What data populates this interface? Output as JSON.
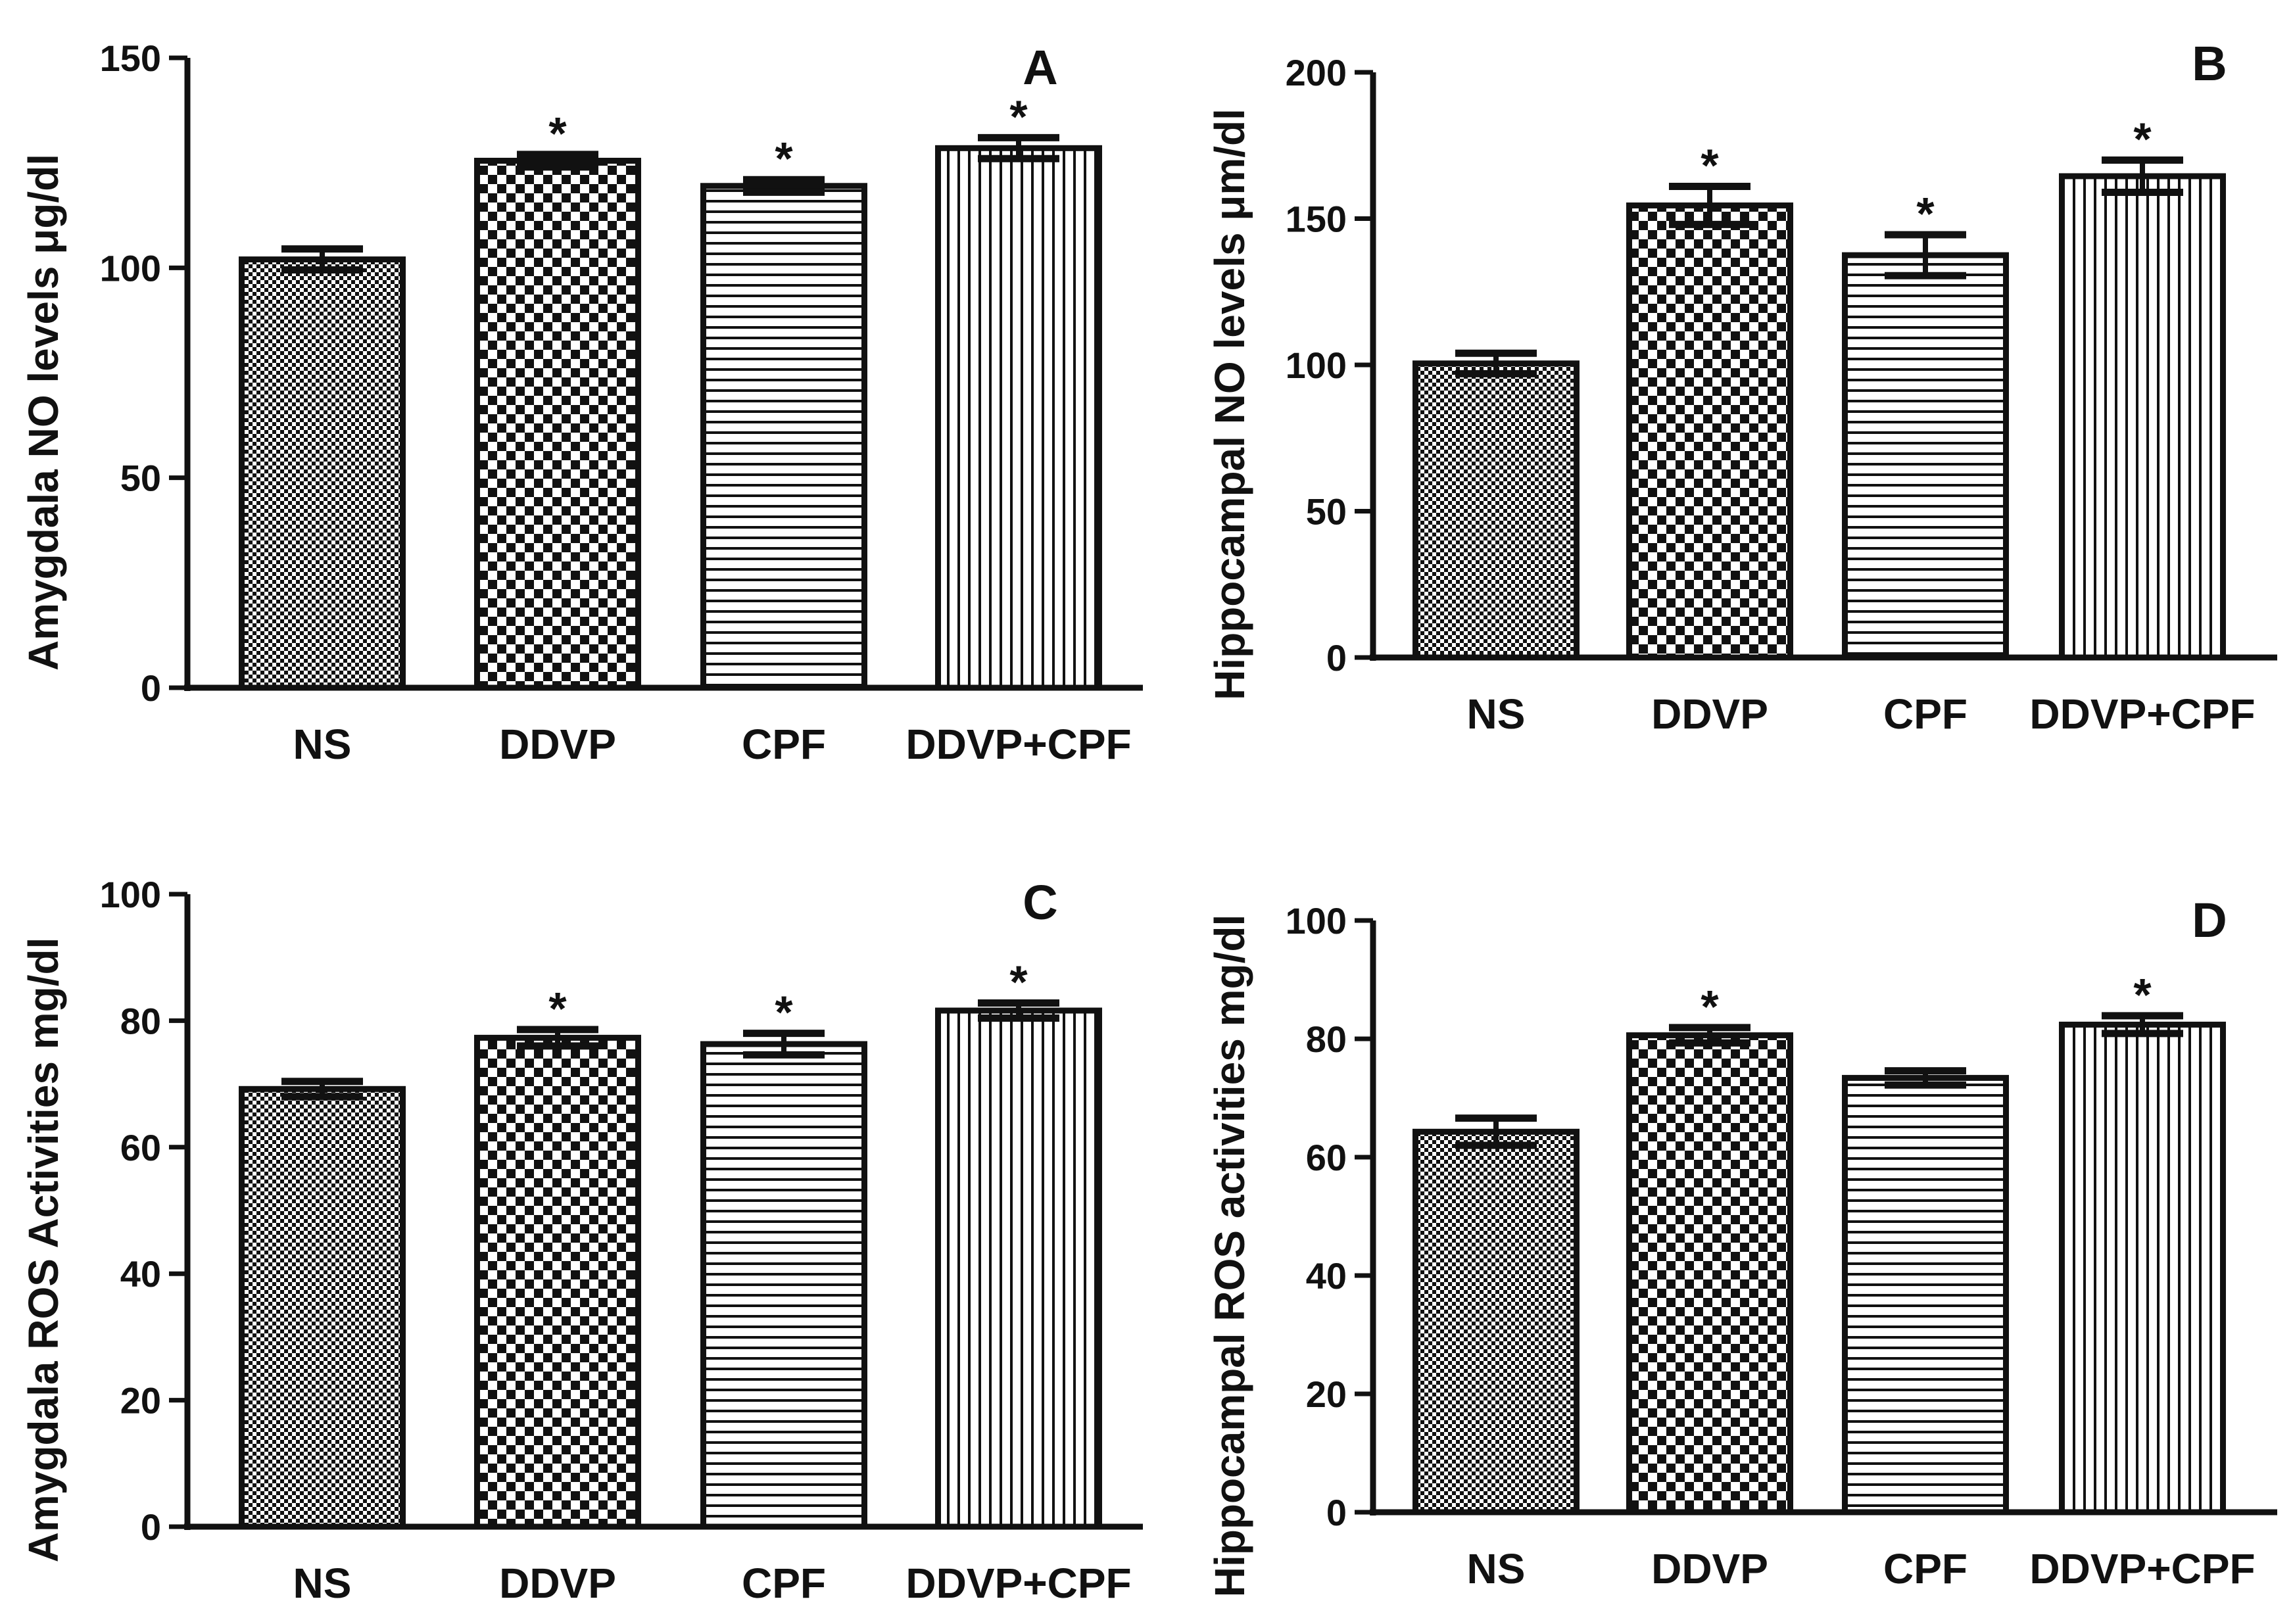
{
  "chart_data": [
    {
      "type": "bar",
      "panel": "A",
      "categories": [
        "NS",
        "DDVP",
        "CPF",
        "DDVP+CPF"
      ],
      "values": [
        102,
        125.5,
        119.5,
        128.5
      ],
      "errors": [
        2.5,
        1.5,
        1.5,
        2.5
      ],
      "significance": [
        "",
        "*",
        "*",
        "*"
      ],
      "ylabel": "Amygdala NO levels  μg/dl",
      "ylim": [
        0,
        150
      ],
      "yticks": [
        0,
        50,
        100,
        150
      ],
      "legend": "none",
      "grid": false
    },
    {
      "type": "bar",
      "panel": "B",
      "categories": [
        "NS",
        "DDVP",
        "CPF",
        "DDVP+CPF"
      ],
      "values": [
        100.5,
        154.5,
        137.5,
        164.5
      ],
      "errors": [
        3.5,
        6.5,
        7,
        5.5
      ],
      "significance": [
        "",
        "*",
        "*",
        "*"
      ],
      "ylabel": "Hippocampal NO levels  μm/dl",
      "ylim": [
        0,
        200
      ],
      "yticks": [
        0,
        50,
        100,
        150,
        200
      ],
      "legend": "none",
      "grid": false
    },
    {
      "type": "bar",
      "panel": "C",
      "categories": [
        "NS",
        "DDVP",
        "CPF",
        "DDVP+CPF"
      ],
      "values": [
        69.2,
        77.3,
        76.3,
        81.6
      ],
      "errors": [
        1.2,
        1.3,
        1.7,
        1.2
      ],
      "significance": [
        "",
        "*",
        "*",
        "*"
      ],
      "ylabel": "Amygdala ROS Activities mg/dl",
      "ylim": [
        0,
        100
      ],
      "yticks": [
        0,
        20,
        40,
        60,
        80,
        100
      ],
      "legend": "none",
      "grid": false
    },
    {
      "type": "bar",
      "panel": "D",
      "categories": [
        "NS",
        "DDVP",
        "CPF",
        "DDVP+CPF"
      ],
      "values": [
        64.3,
        80.6,
        73.4,
        82.4
      ],
      "errors": [
        2.3,
        1.3,
        1.2,
        1.5
      ],
      "significance": [
        "",
        "*",
        "",
        "*"
      ],
      "ylabel": "Hippocampal ROS activities mg/dl",
      "ylim": [
        0,
        100
      ],
      "yticks": [
        0,
        20,
        40,
        60,
        80,
        100
      ],
      "legend": "none",
      "grid": false
    }
  ]
}
